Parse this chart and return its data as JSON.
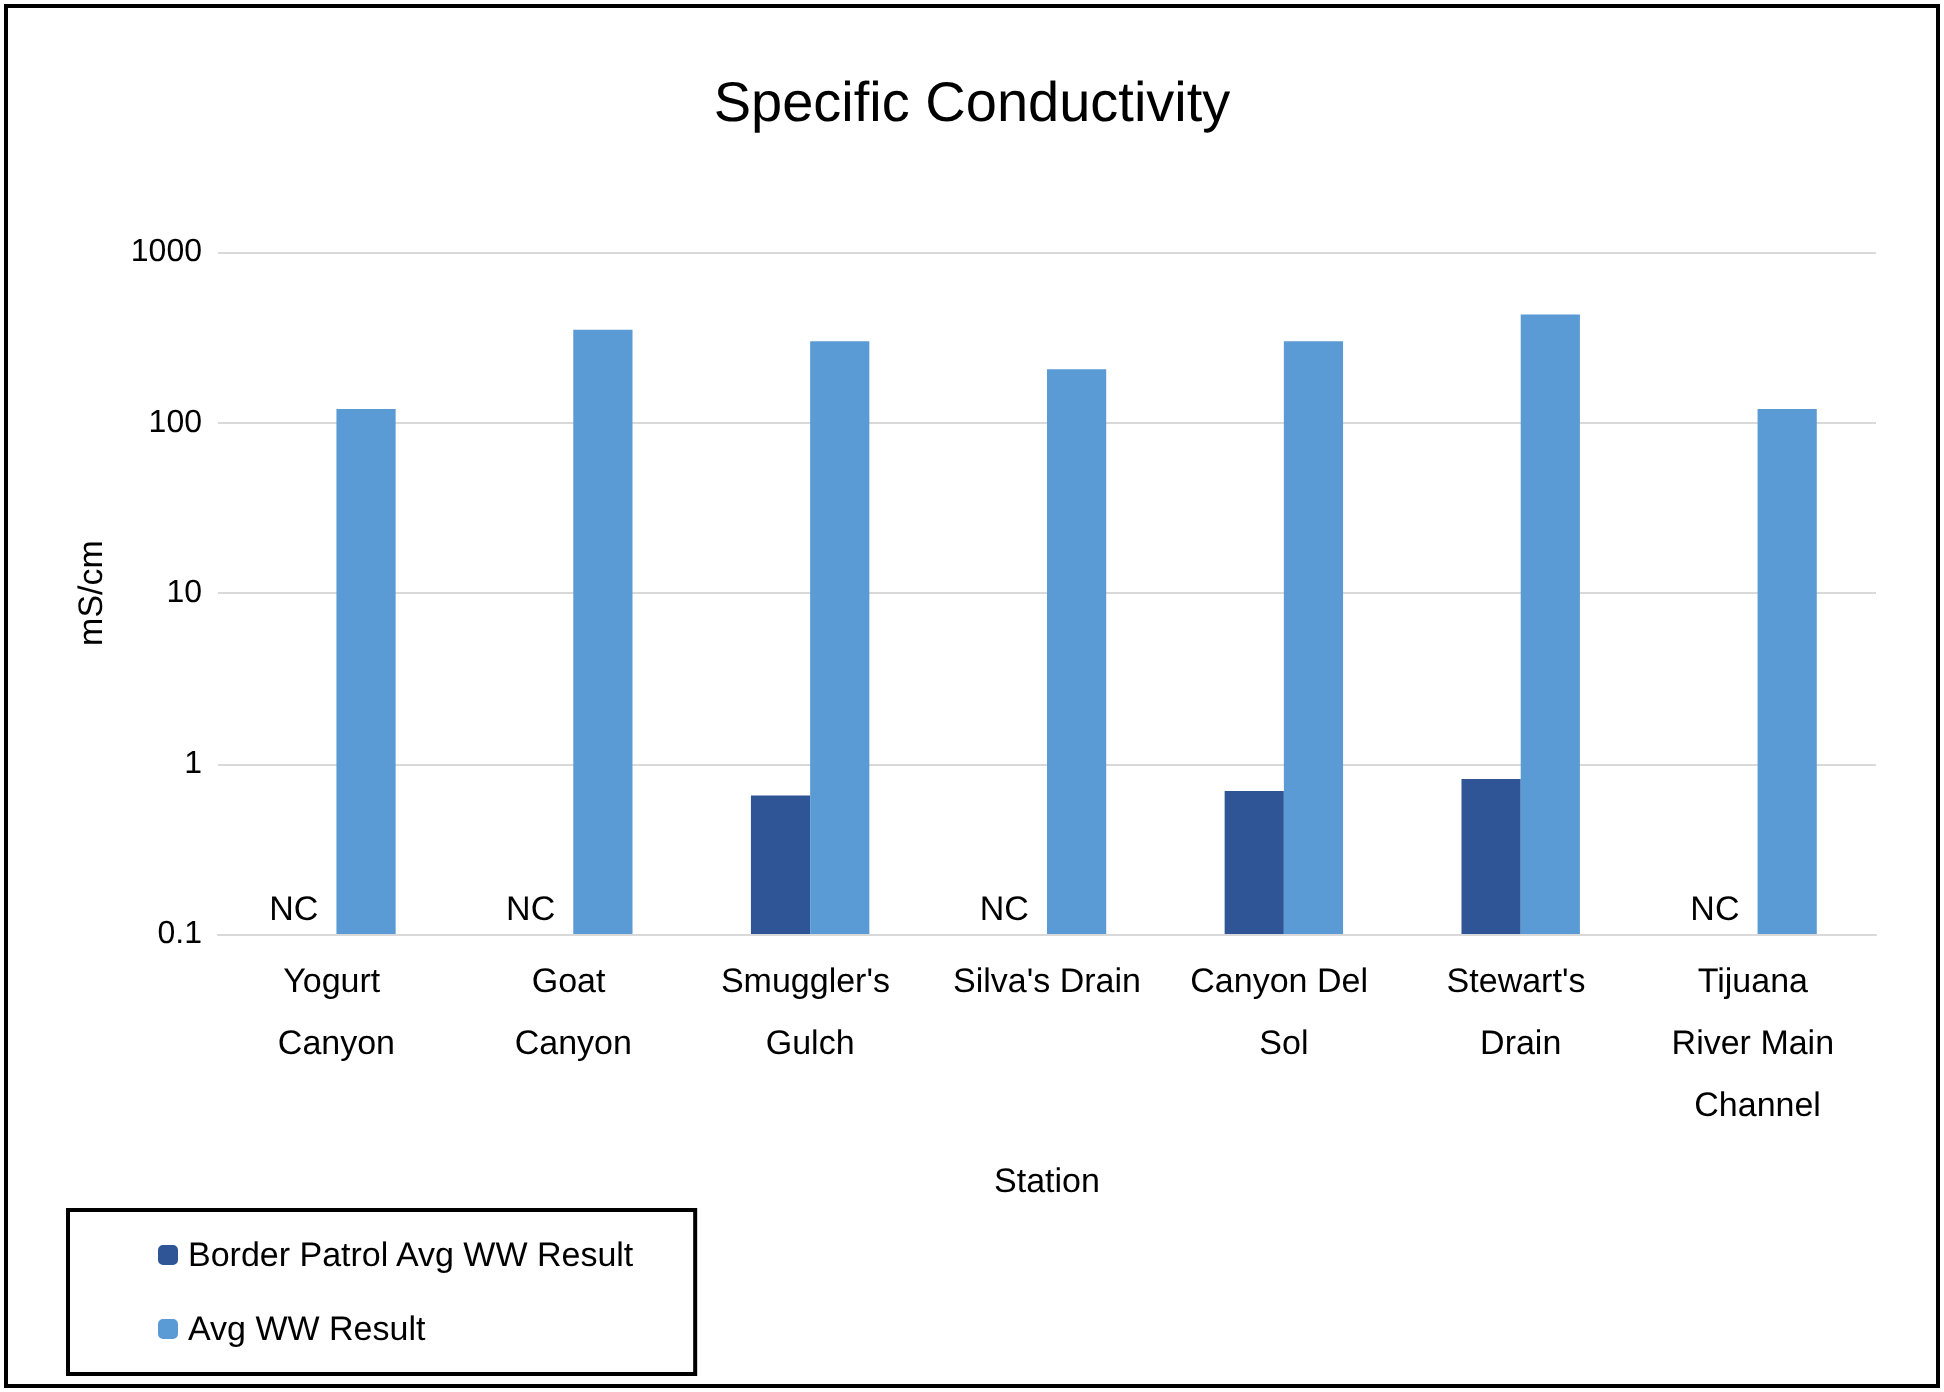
{
  "chart_data": {
    "type": "bar",
    "title": "Specific Conductivity",
    "xlabel": "Station",
    "ylabel": "mS/cm",
    "categories": [
      "Yogurt Canyon",
      "Goat Canyon",
      "Smuggler's Gulch",
      "Silva's Drain",
      "Canyon Del Sol",
      "Stewart's Drain",
      "Tijuana River Main Channel"
    ],
    "series": [
      {
        "name": "Border Patrol Avg WW Result",
        "color": "#2f5597",
        "values": [
          null,
          null,
          0.65,
          null,
          0.69,
          0.81,
          null
        ]
      },
      {
        "name": "Avg WW Result",
        "color": "#5b9bd5",
        "values": [
          120,
          350,
          300,
          205,
          300,
          430,
          120
        ]
      }
    ],
    "annotations": [
      "NC",
      "NC",
      "NC",
      "NC"
    ],
    "log": true,
    "ylim": [
      0.1,
      1000
    ],
    "yticks": [
      0.1,
      1,
      10,
      100,
      1000
    ],
    "grid": true,
    "legend": "bottom left"
  }
}
